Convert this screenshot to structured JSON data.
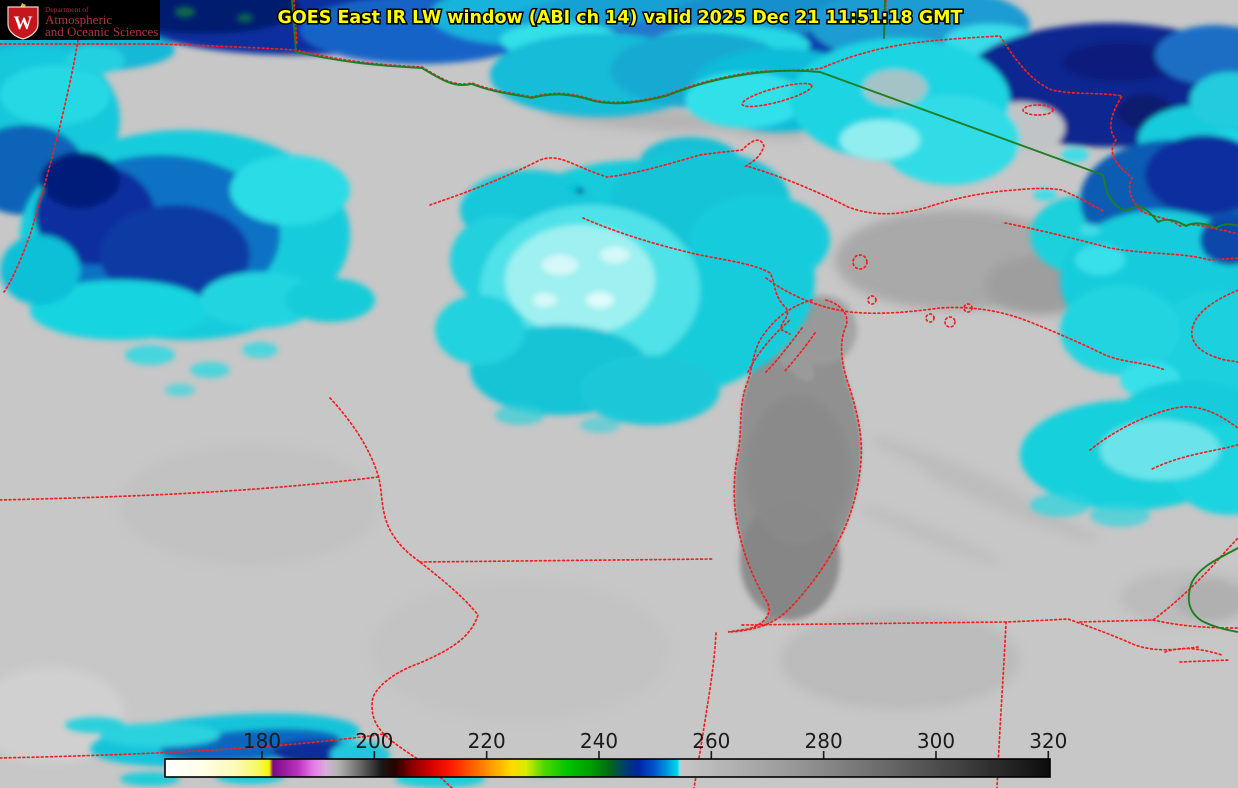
{
  "header": {
    "title": "GOES East IR LW window (ABI ch 14) valid 2025 Dec 21 11:51:18 GMT",
    "title_color": "#ffff00"
  },
  "logo": {
    "dept_line": "Department of",
    "line1": "Atmospheric",
    "line2": "and Oceanic Sciences",
    "crest_letter": "W",
    "text_color": "#b5323c",
    "crest_red": "#c5161d",
    "background": "#000000"
  },
  "map": {
    "land_color": "#c7c7c7",
    "state_border_color": "#f22020",
    "international_border_color": "#1e7e22",
    "cold_cloud_cyan": "#12ccdc",
    "colder_cloud_blue": "#0d3aa6",
    "coldest_cloud_navy": "#041f6e",
    "warm_lake_gray": "#8e8e8e"
  },
  "colorbar": {
    "label_color": "#1a1a1a",
    "tick_values": [
      180,
      200,
      220,
      240,
      260,
      280,
      300,
      320
    ],
    "tick_labels": [
      "180",
      "200",
      "220",
      "240",
      "260",
      "280",
      "300",
      "320"
    ],
    "gradient": [
      {
        "o": 0.0,
        "c": "#ffffff"
      },
      {
        "o": 0.04,
        "c": "#fefeea"
      },
      {
        "o": 0.08,
        "c": "#fbfbb6"
      },
      {
        "o": 0.105,
        "c": "#f8f860"
      },
      {
        "o": 0.118,
        "c": "#f4f400"
      },
      {
        "o": 0.122,
        "c": "#7c0a84"
      },
      {
        "o": 0.15,
        "c": "#b832bc"
      },
      {
        "o": 0.168,
        "c": "#e87ae8"
      },
      {
        "o": 0.182,
        "c": "#d8aed8"
      },
      {
        "o": 0.195,
        "c": "#b4b4b4"
      },
      {
        "o": 0.22,
        "c": "#6a6a6a"
      },
      {
        "o": 0.245,
        "c": "#181818"
      },
      {
        "o": 0.26,
        "c": "#2a0000"
      },
      {
        "o": 0.278,
        "c": "#860000"
      },
      {
        "o": 0.3,
        "c": "#d40000"
      },
      {
        "o": 0.322,
        "c": "#fc1800"
      },
      {
        "o": 0.348,
        "c": "#ff6000"
      },
      {
        "o": 0.37,
        "c": "#ffa000"
      },
      {
        "o": 0.392,
        "c": "#ffdc00"
      },
      {
        "o": 0.408,
        "c": "#d8ec00"
      },
      {
        "o": 0.428,
        "c": "#50d800"
      },
      {
        "o": 0.455,
        "c": "#00c400"
      },
      {
        "o": 0.482,
        "c": "#009c00"
      },
      {
        "o": 0.502,
        "c": "#006a14"
      },
      {
        "o": 0.52,
        "c": "#003c6e"
      },
      {
        "o": 0.535,
        "c": "#0024a4"
      },
      {
        "o": 0.552,
        "c": "#0052cc"
      },
      {
        "o": 0.567,
        "c": "#0096dc"
      },
      {
        "o": 0.579,
        "c": "#00d8ec"
      },
      {
        "o": 0.581,
        "c": "#5ce8f4"
      },
      {
        "o": 0.583,
        "c": "#c6c6c6"
      },
      {
        "o": 0.7,
        "c": "#9c9c9c"
      },
      {
        "o": 0.8,
        "c": "#707070"
      },
      {
        "o": 0.9,
        "c": "#404040"
      },
      {
        "o": 1.0,
        "c": "#0c0c0c"
      }
    ]
  }
}
